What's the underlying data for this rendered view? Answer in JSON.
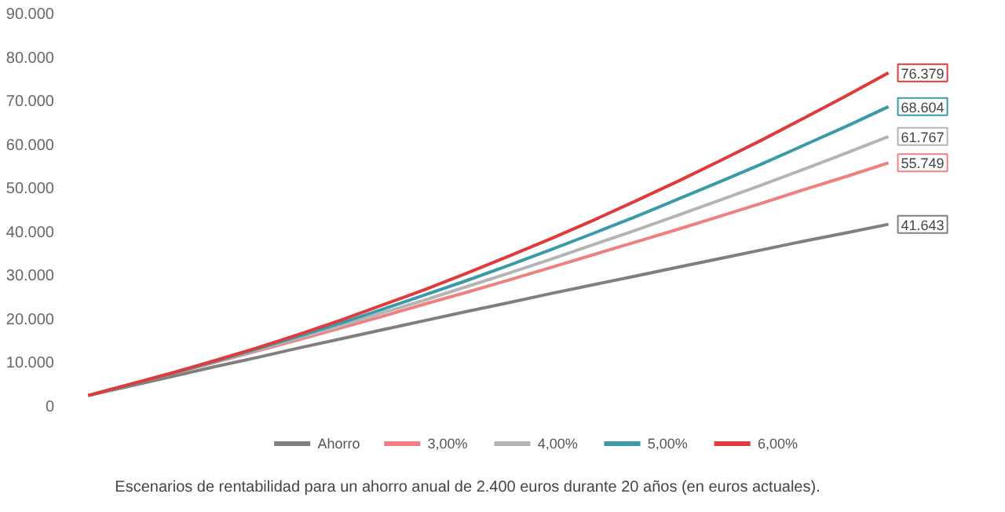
{
  "chart_data": {
    "type": "line",
    "categories": [
      null,
      null,
      null,
      null,
      null,
      null,
      null,
      null,
      null,
      null,
      null,
      null,
      null,
      null,
      null,
      null,
      null,
      null,
      null,
      null
    ],
    "series": [
      {
        "name": "Ahorro",
        "color": "#7f7f7f",
        "values": [
          2400,
          4600,
          6800,
          9000,
          11100,
          13300,
          15400,
          17500,
          19600,
          21700,
          23700,
          25800,
          27800,
          29800,
          31800,
          33800,
          35800,
          37800,
          39700,
          41643
        ],
        "value_labels": [
          null,
          null,
          null,
          null,
          null,
          null,
          null,
          null,
          null,
          null,
          null,
          null,
          null,
          null,
          null,
          null,
          null,
          null,
          null,
          "41.643"
        ]
      },
      {
        "name": "3,00%",
        "color": "#f08080",
        "values": [
          2400,
          4900,
          7400,
          10000,
          12600,
          15200,
          17900,
          20600,
          23400,
          26100,
          28900,
          31800,
          34700,
          37600,
          40500,
          43500,
          46500,
          49600,
          52600,
          55749
        ],
        "value_labels": [
          null,
          null,
          null,
          null,
          null,
          null,
          null,
          null,
          null,
          null,
          null,
          null,
          null,
          null,
          null,
          null,
          null,
          null,
          null,
          "55.749"
        ]
      },
      {
        "name": "4,00%",
        "color": "#b4b4b4",
        "values": [
          2400,
          4900,
          7500,
          10100,
          12800,
          15600,
          18400,
          21400,
          24300,
          27400,
          30500,
          33700,
          37000,
          40300,
          43700,
          47200,
          50700,
          54300,
          58000,
          61767
        ],
        "value_labels": [
          null,
          null,
          null,
          null,
          null,
          null,
          null,
          null,
          null,
          null,
          null,
          null,
          null,
          null,
          null,
          null,
          null,
          null,
          null,
          "61.767"
        ]
      },
      {
        "name": "5,00%",
        "color": "#3a9aa8",
        "values": [
          2400,
          4900,
          7500,
          10200,
          13100,
          16000,
          19000,
          22200,
          25500,
          28800,
          32300,
          35900,
          39600,
          43400,
          47400,
          51400,
          55500,
          59800,
          64100,
          68604
        ],
        "value_labels": [
          null,
          null,
          null,
          null,
          null,
          null,
          null,
          null,
          null,
          null,
          null,
          null,
          null,
          null,
          null,
          null,
          null,
          null,
          null,
          "68.604"
        ]
      },
      {
        "name": "6,00%",
        "color": "#e03a3a",
        "values": [
          2400,
          5000,
          7600,
          10400,
          13300,
          16400,
          19700,
          23200,
          26700,
          30500,
          34400,
          38400,
          42600,
          47000,
          51500,
          56200,
          61000,
          66000,
          71100,
          76379
        ],
        "value_labels": [
          null,
          null,
          null,
          null,
          null,
          null,
          null,
          null,
          null,
          null,
          null,
          null,
          null,
          null,
          null,
          null,
          null,
          null,
          null,
          "76.379"
        ]
      }
    ],
    "ylim": [
      0,
      90000
    ],
    "yticks": [
      {
        "value": 0,
        "label": "0"
      },
      {
        "value": 10000,
        "label": "10.000"
      },
      {
        "value": 20000,
        "label": "20.000"
      },
      {
        "value": 30000,
        "label": "30.000"
      },
      {
        "value": 40000,
        "label": "40.000"
      },
      {
        "value": 50000,
        "label": "50.000"
      },
      {
        "value": 60000,
        "label": "60.000"
      },
      {
        "value": 70000,
        "label": "70.000"
      },
      {
        "value": 80000,
        "label": "80.000"
      },
      {
        "value": 90000,
        "label": "90.000"
      }
    ],
    "tick_labels": "y",
    "grid": false,
    "legend": "bottom",
    "marker": "none",
    "line_style": "solid",
    "annotations": [
      "Escenarios de rentabilidad para un ahorro anual de 2.400 euros durante 20 años (en euros actuales)."
    ]
  }
}
